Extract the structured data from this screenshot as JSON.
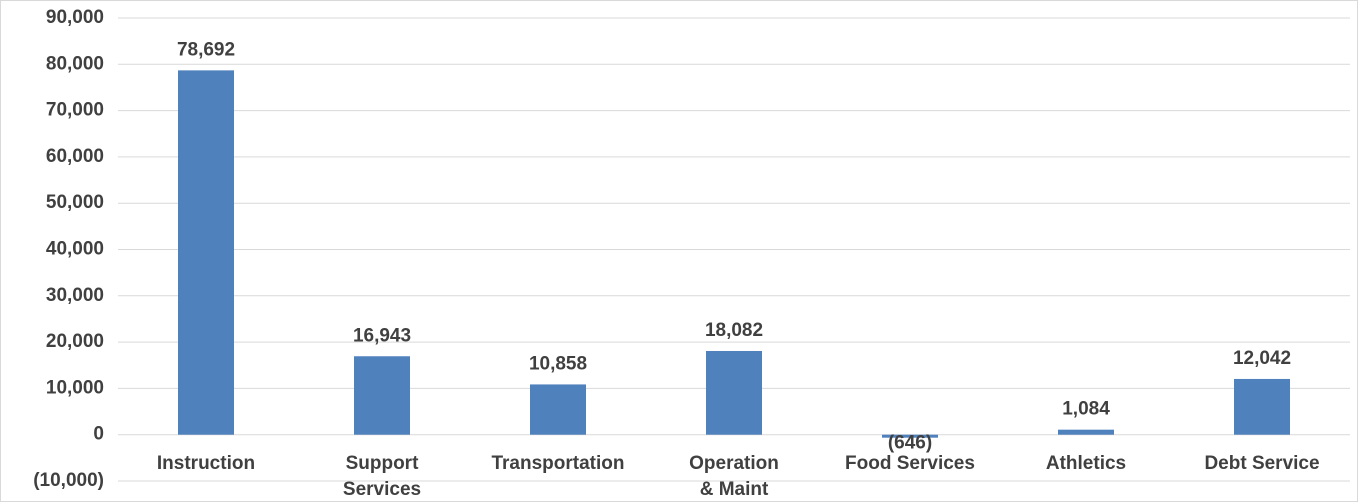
{
  "chart_data": {
    "type": "bar",
    "categories": [
      "Instruction",
      "Support Services",
      "Transportation",
      "Operation & Maint",
      "Food Services",
      "Athletics",
      "Debt Service"
    ],
    "values": [
      78692,
      16943,
      10858,
      18082,
      -646,
      1084,
      12042
    ],
    "value_labels": [
      "78,692",
      "16,943",
      "10,858",
      "18,082",
      "(646)",
      "1,084",
      "12,042"
    ],
    "color": "#4f81bd",
    "ylim": [
      -10000,
      90000
    ],
    "yticks": [
      {
        "value": -10000,
        "label": "(10,000)"
      },
      0,
      {
        "value": 10000,
        "label": "10,000"
      },
      {
        "value": 20000,
        "label": "20,000"
      },
      {
        "value": 30000,
        "label": "30,000"
      },
      {
        "value": 40000,
        "label": "40,000"
      },
      {
        "value": 50000,
        "label": "50,000"
      },
      {
        "value": 60000,
        "label": "60,000"
      },
      {
        "value": 70000,
        "label": "70,000"
      },
      {
        "value": 80000,
        "label": "80,000"
      },
      {
        "value": 90000,
        "label": "90,000"
      }
    ],
    "grid": true
  }
}
